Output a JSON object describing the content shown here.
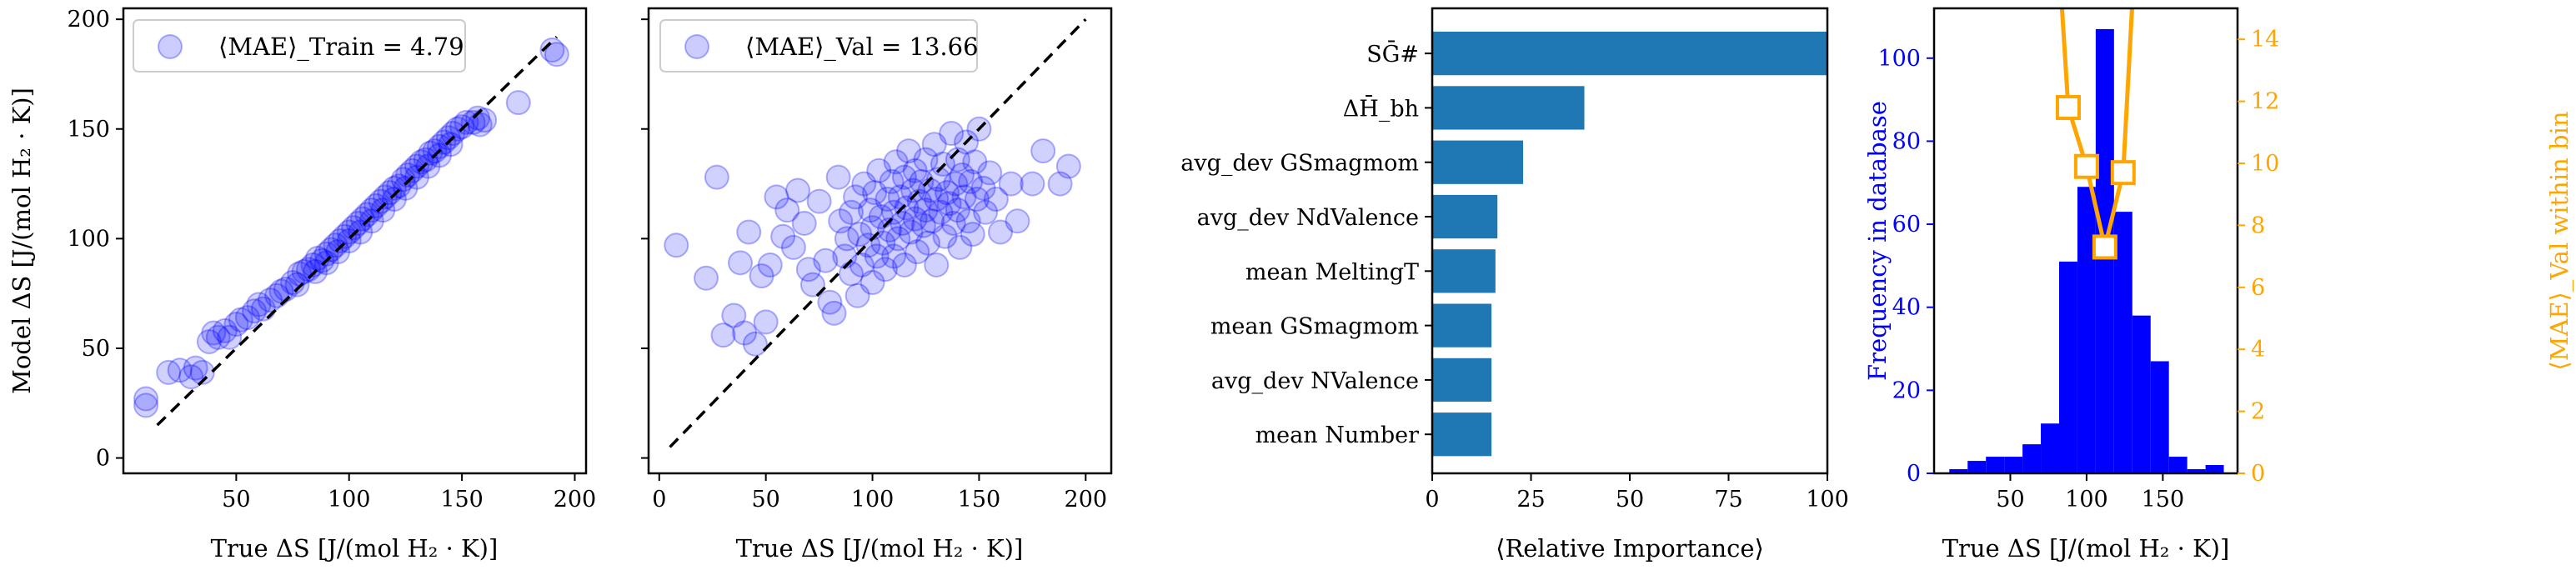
{
  "colors": {
    "points": "#0000ff",
    "bars_importance": "#1f77b4",
    "hist": "#0000ff",
    "mae_line": "#ffa500",
    "diagonal": "#000000"
  },
  "chart_data": [
    {
      "type": "scatter",
      "xlabel": "True ΔS [J/(mol H₂ · K)]",
      "ylabel": "Model ΔS [J/(mol H₂ · K)]",
      "legend": "⟨MAE⟩_Train = 4.79",
      "legend_position": "top-left",
      "xlim": [
        0,
        205
      ],
      "ylim": [
        -7,
        205
      ],
      "xticks": [
        50,
        100,
        150,
        200
      ],
      "yticks": [
        0,
        50,
        100,
        150,
        200
      ],
      "diagonal": [
        [
          15,
          15
        ],
        [
          192,
          192
        ]
      ],
      "points": [
        [
          10,
          24
        ],
        [
          10,
          27
        ],
        [
          20,
          39
        ],
        [
          25,
          40
        ],
        [
          30,
          37
        ],
        [
          32,
          41
        ],
        [
          35,
          39
        ],
        [
          38,
          53
        ],
        [
          40,
          57
        ],
        [
          42,
          55
        ],
        [
          45,
          58
        ],
        [
          47,
          55
        ],
        [
          50,
          61
        ],
        [
          52,
          63
        ],
        [
          55,
          64
        ],
        [
          58,
          67
        ],
        [
          60,
          70
        ],
        [
          62,
          68
        ],
        [
          65,
          72
        ],
        [
          68,
          74
        ],
        [
          70,
          76
        ],
        [
          72,
          77
        ],
        [
          75,
          80
        ],
        [
          77,
          79
        ],
        [
          78,
          84
        ],
        [
          80,
          85
        ],
        [
          82,
          86
        ],
        [
          84,
          88
        ],
        [
          85,
          85
        ],
        [
          86,
          91
        ],
        [
          88,
          90
        ],
        [
          90,
          93
        ],
        [
          90,
          89
        ],
        [
          92,
          95
        ],
        [
          94,
          97
        ],
        [
          95,
          94
        ],
        [
          96,
          99
        ],
        [
          98,
          101
        ],
        [
          100,
          103
        ],
        [
          100,
          99
        ],
        [
          102,
          105
        ],
        [
          104,
          107
        ],
        [
          105,
          103
        ],
        [
          106,
          109
        ],
        [
          108,
          111
        ],
        [
          110,
          113
        ],
        [
          110,
          108
        ],
        [
          112,
          115
        ],
        [
          114,
          117
        ],
        [
          115,
          113
        ],
        [
          116,
          119
        ],
        [
          118,
          121
        ],
        [
          120,
          123
        ],
        [
          120,
          118
        ],
        [
          122,
          124
        ],
        [
          124,
          127
        ],
        [
          125,
          123
        ],
        [
          126,
          129
        ],
        [
          128,
          131
        ],
        [
          130,
          133
        ],
        [
          130,
          128
        ],
        [
          132,
          135
        ],
        [
          134,
          136
        ],
        [
          135,
          133
        ],
        [
          136,
          139
        ],
        [
          138,
          140
        ],
        [
          140,
          142
        ],
        [
          140,
          138
        ],
        [
          142,
          144
        ],
        [
          144,
          146
        ],
        [
          145,
          143
        ],
        [
          146,
          148
        ],
        [
          148,
          150
        ],
        [
          150,
          151
        ],
        [
          152,
          153
        ],
        [
          155,
          153
        ],
        [
          157,
          155
        ],
        [
          158,
          152
        ],
        [
          160,
          154
        ],
        [
          175,
          162
        ],
        [
          190,
          186
        ],
        [
          192,
          184
        ]
      ]
    },
    {
      "type": "scatter",
      "xlabel": "True ΔS [J/(mol H₂ · K)]",
      "legend": "⟨MAE⟩_Val = 13.66",
      "legend_position": "top-left",
      "xlim": [
        -5,
        212
      ],
      "ylim": [
        -7,
        205
      ],
      "xticks": [
        0,
        50,
        100,
        150,
        200
      ],
      "diagonal": [
        [
          5,
          5
        ],
        [
          200,
          200
        ]
      ],
      "points": [
        [
          8,
          97
        ],
        [
          22,
          82
        ],
        [
          27,
          128
        ],
        [
          30,
          56
        ],
        [
          35,
          65
        ],
        [
          38,
          89
        ],
        [
          40,
          57
        ],
        [
          42,
          103
        ],
        [
          45,
          52
        ],
        [
          48,
          83
        ],
        [
          50,
          62
        ],
        [
          52,
          88
        ],
        [
          55,
          119
        ],
        [
          58,
          101
        ],
        [
          60,
          113
        ],
        [
          63,
          96
        ],
        [
          65,
          122
        ],
        [
          68,
          107
        ],
        [
          70,
          86
        ],
        [
          72,
          79
        ],
        [
          75,
          117
        ],
        [
          78,
          90
        ],
        [
          80,
          71
        ],
        [
          82,
          66
        ],
        [
          84,
          128
        ],
        [
          85,
          108
        ],
        [
          87,
          92
        ],
        [
          88,
          100
        ],
        [
          90,
          112
        ],
        [
          90,
          84
        ],
        [
          92,
          119
        ],
        [
          93,
          74
        ],
        [
          94,
          102
        ],
        [
          95,
          88
        ],
        [
          96,
          125
        ],
        [
          98,
          97
        ],
        [
          99,
          113
        ],
        [
          100,
          80
        ],
        [
          100,
          105
        ],
        [
          101,
          121
        ],
        [
          102,
          92
        ],
        [
          103,
          131
        ],
        [
          104,
          110
        ],
        [
          105,
          98
        ],
        [
          106,
          86
        ],
        [
          107,
          118
        ],
        [
          108,
          104
        ],
        [
          109,
          126
        ],
        [
          110,
          112
        ],
        [
          110,
          92
        ],
        [
          111,
          135
        ],
        [
          112,
          100
        ],
        [
          113,
          119
        ],
        [
          114,
          107
        ],
        [
          115,
          128
        ],
        [
          115,
          88
        ],
        [
          116,
          114
        ],
        [
          117,
          140
        ],
        [
          118,
          103
        ],
        [
          119,
          122
        ],
        [
          120,
          109
        ],
        [
          120,
          131
        ],
        [
          121,
          94
        ],
        [
          122,
          117
        ],
        [
          123,
          126
        ],
        [
          124,
          106
        ],
        [
          125,
          136
        ],
        [
          125,
          113
        ],
        [
          126,
          98
        ],
        [
          127,
          122
        ],
        [
          128,
          108
        ],
        [
          129,
          143
        ],
        [
          130,
          118
        ],
        [
          130,
          88
        ],
        [
          131,
          127
        ],
        [
          132,
          112
        ],
        [
          133,
          134
        ],
        [
          134,
          101
        ],
        [
          135,
          121
        ],
        [
          136,
          116
        ],
        [
          137,
          148
        ],
        [
          138,
          107
        ],
        [
          139,
          125
        ],
        [
          140,
          113
        ],
        [
          140,
          136
        ],
        [
          141,
          96
        ],
        [
          142,
          129
        ],
        [
          143,
          119
        ],
        [
          144,
          144
        ],
        [
          145,
          108
        ],
        [
          146,
          126
        ],
        [
          147,
          102
        ],
        [
          148,
          135
        ],
        [
          149,
          118
        ],
        [
          150,
          150
        ],
        [
          152,
          123
        ],
        [
          153,
          112
        ],
        [
          155,
          130
        ],
        [
          158,
          118
        ],
        [
          160,
          103
        ],
        [
          165,
          125
        ],
        [
          168,
          108
        ],
        [
          175,
          125
        ],
        [
          180,
          140
        ],
        [
          188,
          125
        ],
        [
          192,
          133
        ]
      ]
    },
    {
      "type": "bar",
      "orientation": "horizontal",
      "xlabel": "⟨Relative Importance⟩",
      "xlim": [
        0,
        100
      ],
      "xticks": [
        0,
        25,
        50,
        75,
        100
      ],
      "categories": [
        "SḠ#",
        "ΔH̄_bh",
        "avg_dev GSmagmom",
        "avg_dev NdValence",
        "mean MeltingT",
        "mean GSmagmom",
        "avg_dev NValence",
        "mean Number"
      ],
      "values": [
        100,
        38.5,
        23,
        16.5,
        16,
        15,
        15,
        15
      ]
    },
    {
      "type": "bar",
      "subtype": "histogram_with_line",
      "xlabel": "True ΔS [J/(mol H₂ · K)]",
      "ylabel_left": "Frequency in database",
      "ylabel_right": "⟨MAE⟩_Val within bin",
      "xlim": [
        0,
        199
      ],
      "ylim_left": [
        0,
        112
      ],
      "ylim_right": [
        0,
        15
      ],
      "xticks": [
        50,
        100,
        150
      ],
      "yticks_left": [
        0,
        20,
        40,
        60,
        80,
        100
      ],
      "yticks_right": [
        0,
        2,
        4,
        6,
        8,
        10,
        12,
        14
      ],
      "bin_edges": [
        10,
        22,
        34,
        46,
        58,
        70,
        82,
        94,
        106,
        118,
        130,
        142,
        154,
        166,
        178,
        190
      ],
      "counts": [
        1,
        3,
        4,
        4,
        7,
        12,
        51,
        69,
        107,
        63,
        38,
        27,
        4,
        1,
        2
      ],
      "mae_line": {
        "x": [
          80,
          88,
          100,
          112,
          124,
          132
        ],
        "y": [
          18,
          11.8,
          9.9,
          7.3,
          9.7,
          17
        ]
      }
    }
  ]
}
